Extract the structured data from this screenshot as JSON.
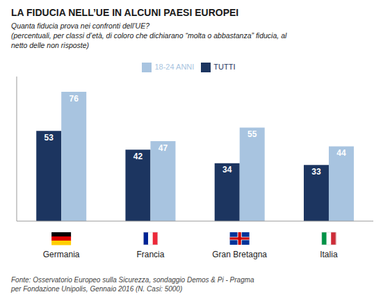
{
  "chart_data": {
    "type": "bar",
    "title": "LA FIDUCIA NELL’UE IN ALCUNI PAESI EUROPEI",
    "subtitle": [
      "Quanta fiducia prova nei confronti dell’UE?",
      "(percentuali, per classi d’età, di coloro che dichiarano “molta o abbastanza” fiducia, al",
      "netto delle non risposte)"
    ],
    "annotations": [
      "Fonte: Osservatorio Europeo sulla Sicurezza, sondaggio Demos & Pi - Pragma\nper Fondazione Unipolis, Gennaio 2016 (N. Casi: 5000)"
    ],
    "categories": [
      "Germania",
      "Francia",
      "Gran Bretagna",
      "Italia"
    ],
    "series": [
      {
        "name": "TUTTI",
        "color": "#1c3560",
        "values": [
          53,
          42,
          34,
          33
        ]
      },
      {
        "name": "18-24 ANNI",
        "color": "#a8c4e0",
        "values": [
          76,
          47,
          55,
          44
        ]
      }
    ],
    "ylim": [
      0,
      85
    ],
    "data_labels": true,
    "tick_labels": "x",
    "legend": "top",
    "grid": false
  }
}
